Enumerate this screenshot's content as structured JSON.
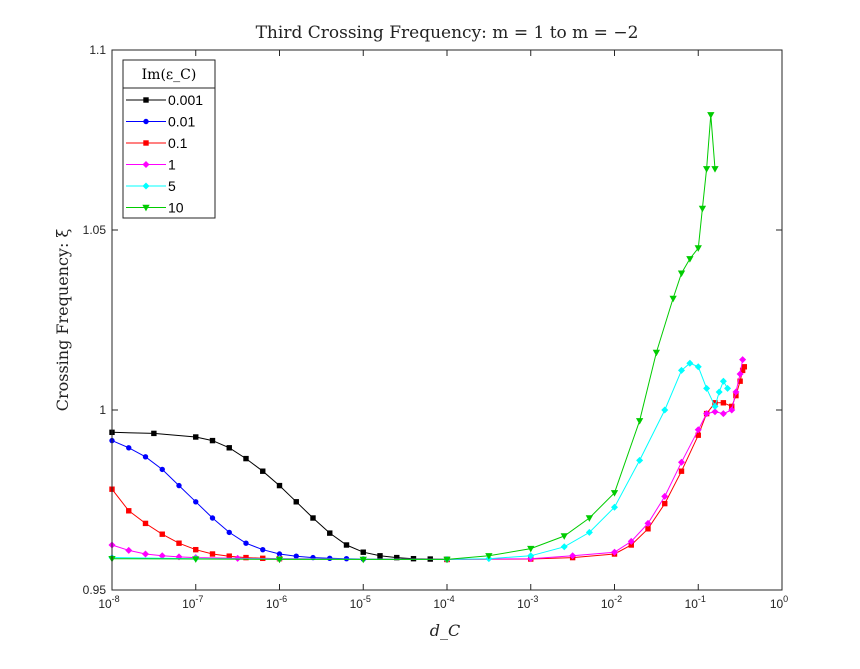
{
  "chart_data": {
    "type": "line",
    "title": "Third Crossing Frequency: m = 1 to m = −2",
    "xlabel": "d_C",
    "ylabel": "Crossing Frequency: ξ",
    "xscale": "log",
    "xlim": [
      1e-08,
      1
    ],
    "ylim": [
      0.95,
      1.1
    ],
    "x_ticks": [
      {
        "value": 1e-08,
        "base": "10",
        "exp": "-8"
      },
      {
        "value": 1e-07,
        "base": "10",
        "exp": "-7"
      },
      {
        "value": 1e-06,
        "base": "10",
        "exp": "-6"
      },
      {
        "value": 1e-05,
        "base": "10",
        "exp": "-5"
      },
      {
        "value": 0.0001,
        "base": "10",
        "exp": "-4"
      },
      {
        "value": 0.001,
        "base": "10",
        "exp": "-3"
      },
      {
        "value": 0.01,
        "base": "10",
        "exp": "-2"
      },
      {
        "value": 0.1,
        "base": "10",
        "exp": "-1"
      },
      {
        "value": 1,
        "base": "10",
        "exp": "0"
      }
    ],
    "y_ticks": [
      {
        "value": 0.95,
        "label": "0.95"
      },
      {
        "value": 1.0,
        "label": "1"
      },
      {
        "value": 1.05,
        "label": "1.05"
      },
      {
        "value": 1.1,
        "label": "1.1"
      }
    ],
    "legend": {
      "title": "Im(ε_C)",
      "location": "top-left"
    },
    "grid": false,
    "series": [
      {
        "name": "0.001",
        "color": "#000000",
        "marker": "square",
        "points": [
          [
            -8,
            0.9938
          ],
          [
            -7.5,
            0.9935
          ],
          [
            -7,
            0.9925
          ],
          [
            -6.8,
            0.9915
          ],
          [
            -6.6,
            0.9895
          ],
          [
            -6.4,
            0.9865
          ],
          [
            -6.2,
            0.983
          ],
          [
            -6,
            0.979
          ],
          [
            -5.8,
            0.9745
          ],
          [
            -5.6,
            0.97
          ],
          [
            -5.4,
            0.9658
          ],
          [
            -5.2,
            0.9625
          ],
          [
            -5,
            0.9605
          ],
          [
            -4.8,
            0.9595
          ],
          [
            -4.6,
            0.959
          ],
          [
            -4.4,
            0.9587
          ],
          [
            -4.2,
            0.9586
          ],
          [
            -4,
            0.9585
          ]
        ]
      },
      {
        "name": "0.01",
        "color": "#0000ff",
        "marker": "circle",
        "points": [
          [
            -8,
            0.9915
          ],
          [
            -7.8,
            0.9895
          ],
          [
            -7.6,
            0.987
          ],
          [
            -7.4,
            0.9835
          ],
          [
            -7.2,
            0.979
          ],
          [
            -7,
            0.9745
          ],
          [
            -6.8,
            0.97
          ],
          [
            -6.6,
            0.966
          ],
          [
            -6.4,
            0.963
          ],
          [
            -6.2,
            0.9612
          ],
          [
            -6,
            0.96
          ],
          [
            -5.8,
            0.9594
          ],
          [
            -5.6,
            0.959
          ],
          [
            -5.4,
            0.9588
          ],
          [
            -5.2,
            0.9587
          ],
          [
            -5,
            0.9586
          ]
        ]
      },
      {
        "name": "0.1",
        "color": "#ff0000",
        "marker": "square",
        "points": [
          [
            -8,
            0.978
          ],
          [
            -7.8,
            0.972
          ],
          [
            -7.6,
            0.9685
          ],
          [
            -7.4,
            0.9655
          ],
          [
            -7.2,
            0.963
          ],
          [
            -7,
            0.9612
          ],
          [
            -6.8,
            0.96
          ],
          [
            -6.6,
            0.9594
          ],
          [
            -6.4,
            0.959
          ],
          [
            -6.2,
            0.9588
          ],
          [
            -6,
            0.9587
          ],
          [
            -4,
            0.9585
          ],
          [
            -3,
            0.9586
          ],
          [
            -2.5,
            0.959
          ],
          [
            -2,
            0.96
          ],
          [
            -1.8,
            0.9625
          ],
          [
            -1.6,
            0.967
          ],
          [
            -1.4,
            0.974
          ],
          [
            -1.2,
            0.983
          ],
          [
            -1.0,
            0.993
          ],
          [
            -0.9,
            0.999
          ],
          [
            -0.8,
            1.002
          ],
          [
            -0.7,
            1.002
          ],
          [
            -0.6,
            1.001
          ],
          [
            -0.55,
            1.004
          ],
          [
            -0.5,
            1.008
          ],
          [
            -0.47,
            1.011
          ],
          [
            -0.45,
            1.012
          ]
        ]
      },
      {
        "name": "1",
        "color": "#ff00ff",
        "marker": "diamond",
        "points": [
          [
            -8,
            0.9625
          ],
          [
            -7.8,
            0.961
          ],
          [
            -7.6,
            0.96
          ],
          [
            -7.4,
            0.9595
          ],
          [
            -7.2,
            0.9592
          ],
          [
            -7,
            0.959
          ],
          [
            -6.5,
            0.9588
          ],
          [
            -6,
            0.9587
          ],
          [
            -4,
            0.9585
          ],
          [
            -3,
            0.9587
          ],
          [
            -2.5,
            0.9595
          ],
          [
            -2,
            0.9605
          ],
          [
            -1.8,
            0.9635
          ],
          [
            -1.6,
            0.9685
          ],
          [
            -1.4,
            0.976
          ],
          [
            -1.2,
            0.9855
          ],
          [
            -1.0,
            0.9945
          ],
          [
            -0.9,
            0.999
          ],
          [
            -0.8,
            0.9995
          ],
          [
            -0.7,
            0.999
          ],
          [
            -0.6,
            1.0
          ],
          [
            -0.55,
            1.005
          ],
          [
            -0.5,
            1.01
          ],
          [
            -0.47,
            1.014
          ]
        ]
      },
      {
        "name": "5",
        "color": "#00ffff",
        "marker": "diamond",
        "points": [
          [
            -8,
            0.959
          ],
          [
            -7,
            0.9587
          ],
          [
            -6,
            0.9586
          ],
          [
            -4,
            0.9585
          ],
          [
            -3.5,
            0.9587
          ],
          [
            -3,
            0.9595
          ],
          [
            -2.6,
            0.962
          ],
          [
            -2.3,
            0.966
          ],
          [
            -2,
            0.973
          ],
          [
            -1.7,
            0.986
          ],
          [
            -1.4,
            1.0
          ],
          [
            -1.2,
            1.011
          ],
          [
            -1.1,
            1.013
          ],
          [
            -1.0,
            1.012
          ],
          [
            -0.9,
            1.006
          ],
          [
            -0.8,
            1.001
          ],
          [
            -0.75,
            1.005
          ],
          [
            -0.7,
            1.008
          ],
          [
            -0.65,
            1.006
          ]
        ]
      },
      {
        "name": "10",
        "color": "#00cc00",
        "marker": "triangle",
        "points": [
          [
            -8,
            0.9587
          ],
          [
            -7,
            0.9586
          ],
          [
            -6,
            0.9585
          ],
          [
            -5,
            0.9585
          ],
          [
            -4,
            0.9585
          ],
          [
            -3.5,
            0.9595
          ],
          [
            -3,
            0.9615
          ],
          [
            -2.6,
            0.965
          ],
          [
            -2.3,
            0.97
          ],
          [
            -2,
            0.977
          ],
          [
            -1.7,
            0.997
          ],
          [
            -1.5,
            1.016
          ],
          [
            -1.3,
            1.031
          ],
          [
            -1.2,
            1.038
          ],
          [
            -1.1,
            1.042
          ],
          [
            -1.0,
            1.045
          ],
          [
            -0.95,
            1.056
          ],
          [
            -0.9,
            1.067
          ],
          [
            -0.85,
            1.082
          ],
          [
            -0.8,
            1.067
          ]
        ]
      }
    ]
  }
}
